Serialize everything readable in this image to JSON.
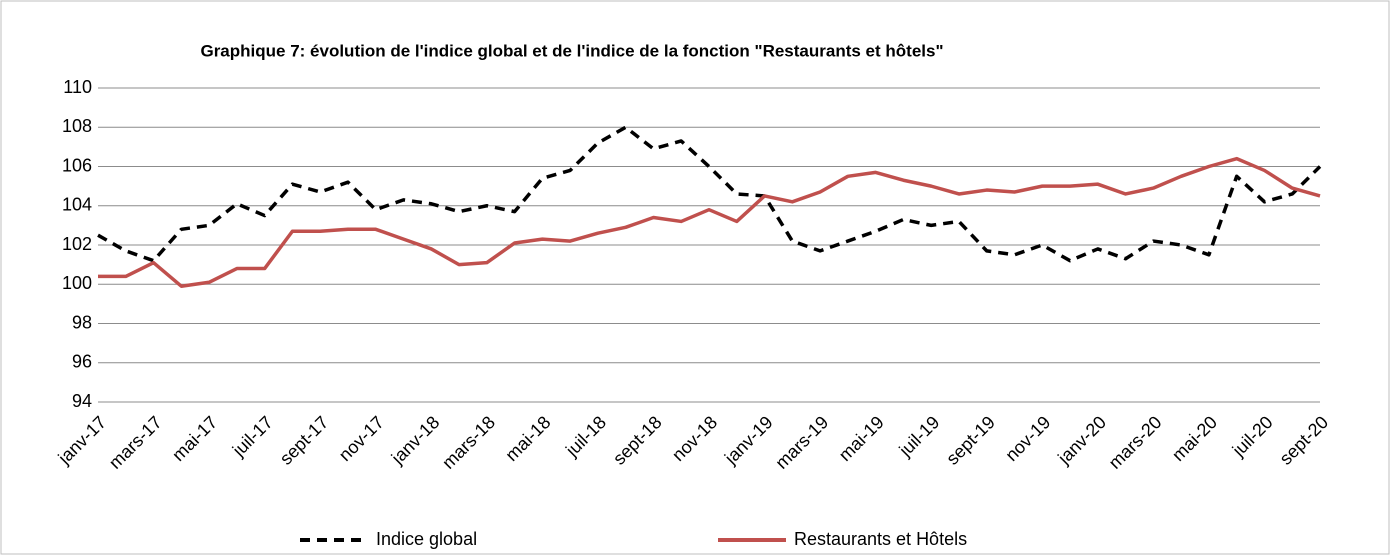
{
  "chart_data": {
    "type": "line",
    "title": "Graphique 7: évolution de l'indice global et de l'indice de la fonction \"Restaurants et hôtels\"",
    "categories": [
      "janv-17",
      null,
      "mars-17",
      null,
      "mai-17",
      null,
      "juil-17",
      null,
      "sept-17",
      null,
      "nov-17",
      null,
      "janv-18",
      null,
      "mars-18",
      null,
      "mai-18",
      null,
      "juil-18",
      null,
      "sept-18",
      null,
      "nov-18",
      null,
      "janv-19",
      null,
      "mars-19",
      null,
      "mai-19",
      null,
      "juil-19",
      null,
      "sept-19",
      null,
      "nov-19",
      null,
      "janv-20",
      null,
      "mars-20",
      null,
      "mai-20",
      null,
      "juil-20",
      null,
      "sept-20"
    ],
    "series": [
      {
        "name": "Indice global",
        "color": "#000000",
        "dashed": true,
        "values": [
          102.5,
          101.7,
          101.2,
          102.8,
          103.0,
          104.1,
          103.5,
          105.1,
          104.7,
          105.2,
          103.8,
          104.3,
          104.1,
          103.7,
          104.0,
          103.7,
          105.4,
          105.8,
          107.2,
          108.0,
          106.9,
          107.3,
          106.0,
          104.6,
          104.5,
          102.2,
          101.7,
          102.2,
          102.7,
          103.3,
          103.0,
          103.2,
          101.7,
          101.5,
          102.0,
          101.2,
          101.8,
          101.3,
          102.2,
          102.0,
          101.5,
          105.5,
          104.2,
          104.6,
          106.0
        ]
      },
      {
        "name": "Restaurants et Hôtels",
        "color": "#c0504d",
        "dashed": false,
        "values": [
          100.4,
          100.4,
          101.1,
          99.9,
          100.1,
          100.8,
          100.8,
          102.7,
          102.7,
          102.8,
          102.8,
          102.3,
          101.8,
          101.0,
          101.1,
          102.1,
          102.3,
          102.2,
          102.6,
          102.9,
          103.4,
          103.2,
          103.8,
          103.2,
          104.5,
          104.2,
          104.7,
          105.5,
          105.7,
          105.3,
          105.0,
          104.6,
          104.8,
          104.7,
          105.0,
          105.0,
          105.1,
          104.6,
          104.9,
          105.5,
          106.0,
          106.4,
          105.8,
          104.9,
          104.5
        ]
      }
    ],
    "ylim": [
      94,
      110
    ],
    "yticks": [
      94,
      96,
      98,
      100,
      102,
      104,
      106,
      108,
      110
    ],
    "grid": true,
    "legend": "bottom"
  }
}
